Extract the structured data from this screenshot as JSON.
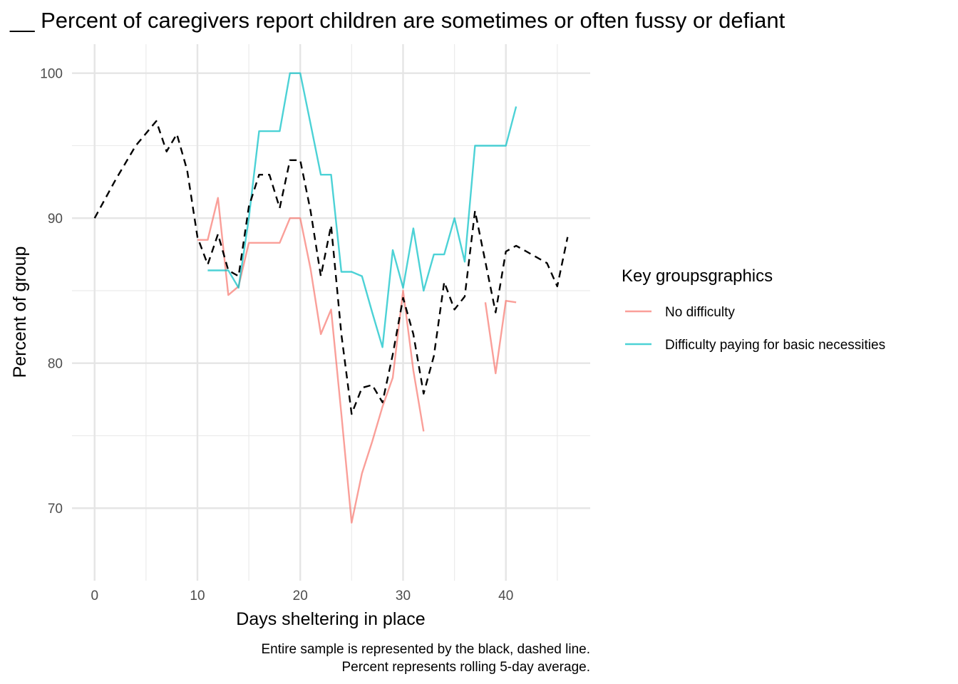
{
  "chart_data": {
    "type": "line",
    "title": "__ Percent of caregivers report children are sometimes or often fussy or defiant",
    "xlabel": "Days sheltering in place",
    "ylabel": "Percent of group",
    "xlim": [
      -2.2,
      48.2
    ],
    "ylim": [
      65,
      102
    ],
    "x_ticks": [
      0,
      10,
      20,
      30,
      40
    ],
    "y_ticks": [
      70,
      80,
      90,
      100
    ],
    "grid": true,
    "legend": {
      "title": "Key groupsgraphics",
      "position": "right",
      "entries": [
        "No difficulty",
        "Difficulty paying for basic necessities"
      ]
    },
    "caption": [
      "Entire sample is represented by the black, dashed line.",
      "Percent represents rolling 5-day average."
    ],
    "colors": {
      "No difficulty": "#f8766d",
      "Difficulty paying for basic necessities": "#00bfc4",
      "Entire sample": "#000000"
    },
    "series": [
      {
        "name": "No difficulty",
        "style": "solid",
        "points": [
          [
            10,
            88.5
          ],
          [
            11,
            88.5
          ],
          [
            12,
            91.4
          ],
          [
            13,
            84.7
          ],
          [
            14,
            85.3
          ],
          [
            15,
            88.3
          ],
          [
            16,
            88.3
          ],
          [
            17,
            88.3
          ],
          [
            18,
            88.3
          ],
          [
            19,
            90
          ],
          [
            20,
            90
          ],
          [
            21,
            86.5
          ],
          [
            22,
            82
          ],
          [
            23,
            83.7
          ],
          [
            24,
            76.5
          ],
          [
            25,
            69
          ],
          [
            26,
            72.4
          ],
          [
            27,
            74.6
          ],
          [
            28,
            77
          ],
          [
            29,
            79
          ],
          [
            30,
            85
          ],
          [
            31,
            79.5
          ],
          [
            32,
            75.3
          ],
          null,
          [
            38,
            84.2
          ],
          [
            39,
            79.3
          ],
          [
            40,
            84.3
          ],
          [
            41,
            84.2
          ]
        ]
      },
      {
        "name": "Difficulty paying for basic necessities",
        "style": "solid",
        "points": [
          [
            11,
            86.4
          ],
          [
            12,
            86.4
          ],
          [
            13,
            86.4
          ],
          [
            14,
            85.2
          ],
          [
            15,
            90
          ],
          [
            16,
            96
          ],
          [
            17,
            96
          ],
          [
            18,
            96
          ],
          [
            19,
            100
          ],
          [
            20,
            100
          ],
          [
            21,
            96.5
          ],
          [
            22,
            93
          ],
          [
            23,
            93
          ],
          [
            24,
            86.3
          ],
          [
            25,
            86.3
          ],
          [
            26,
            86
          ],
          [
            27,
            83.5
          ],
          [
            28,
            81.1
          ],
          [
            29,
            87.8
          ],
          [
            30,
            85.2
          ],
          [
            31,
            89.3
          ],
          [
            32,
            85
          ],
          [
            33,
            87.5
          ],
          [
            34,
            87.5
          ],
          [
            35,
            90
          ],
          [
            36,
            87
          ],
          [
            37,
            95
          ],
          [
            38,
            95
          ],
          [
            39,
            95
          ],
          [
            40,
            95
          ],
          [
            41,
            97.7
          ]
        ]
      },
      {
        "name": "",
        "style": "dashed",
        "points": [
          [
            0,
            90
          ],
          [
            2,
            92.6
          ],
          [
            4,
            95
          ],
          [
            6,
            96.7
          ],
          [
            7,
            94.6
          ],
          [
            8,
            95.8
          ],
          [
            9,
            93.3
          ],
          [
            10,
            88.7
          ],
          [
            11,
            86.8
          ],
          [
            12,
            88.9
          ],
          [
            13,
            86.4
          ],
          [
            14,
            86
          ],
          [
            15,
            90.8
          ],
          [
            16,
            93
          ],
          [
            17,
            93
          ],
          [
            18,
            90.7
          ],
          [
            19,
            94
          ],
          [
            20,
            94
          ],
          [
            21,
            90.5
          ],
          [
            22,
            86
          ],
          [
            23,
            89.5
          ],
          [
            24,
            82
          ],
          [
            25,
            76.5
          ],
          [
            26,
            78.3
          ],
          [
            27,
            78.5
          ],
          [
            28,
            77.3
          ],
          [
            29,
            80.6
          ],
          [
            30,
            84.5
          ],
          [
            31,
            82
          ],
          [
            32,
            77.9
          ],
          [
            33,
            80.5
          ],
          [
            34,
            85.6
          ],
          [
            35,
            83.7
          ],
          [
            36,
            84.6
          ],
          [
            37,
            90.5
          ],
          [
            38,
            87
          ],
          [
            39,
            83.5
          ],
          [
            40,
            87.7
          ],
          [
            41,
            88.1
          ],
          [
            42,
            87.7
          ],
          [
            44,
            86.9
          ],
          [
            45,
            85.3
          ],
          [
            46,
            88.7
          ]
        ]
      }
    ]
  }
}
